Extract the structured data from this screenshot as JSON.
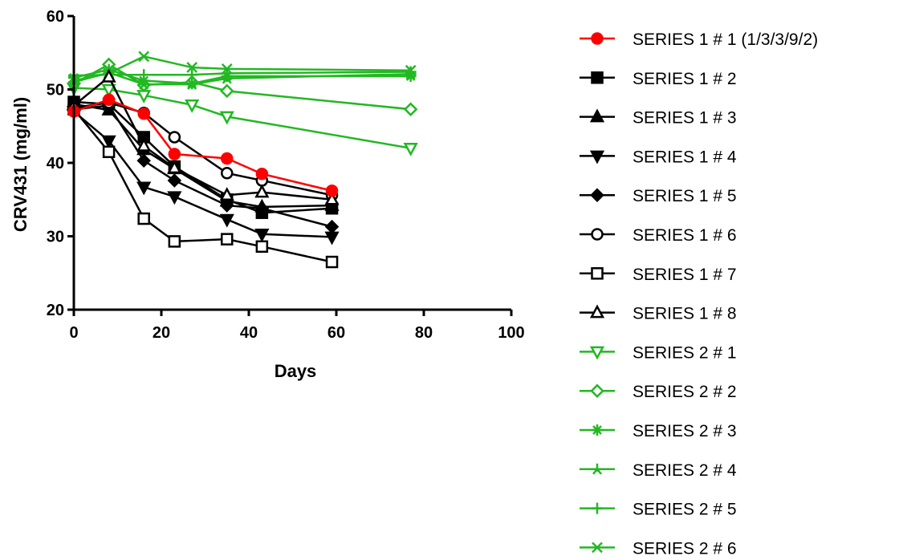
{
  "chart_data": {
    "type": "line",
    "xlabel": "Days",
    "ylabel": "CRV431 (mg/ml)",
    "xlim": [
      0,
      100
    ],
    "ylim": [
      20,
      60
    ],
    "x_ticks": [
      0,
      20,
      40,
      60,
      80,
      100
    ],
    "y_ticks": [
      20,
      30,
      40,
      50,
      60
    ],
    "grid": false,
    "legend_position": "right",
    "colors": {
      "black": "#000000",
      "red": "#ff0000",
      "green": "#22b822"
    },
    "series": [
      {
        "name": "SERIES 1 # 1 (1/3/3/9/2)",
        "color": "#ff0000",
        "marker": "circle-filled",
        "x": [
          0,
          8,
          16,
          23,
          35,
          43,
          59
        ],
        "y": [
          47.0,
          48.6,
          46.7,
          41.2,
          40.6,
          38.5,
          36.2
        ]
      },
      {
        "name": "SERIES 1 # 2",
        "color": "#000000",
        "marker": "square-filled",
        "x": [
          0,
          8,
          16,
          23,
          35,
          43,
          59
        ],
        "y": [
          48.3,
          48.0,
          43.5,
          39.5,
          35.0,
          33.2,
          33.8
        ]
      },
      {
        "name": "SERIES 1 # 3",
        "color": "#000000",
        "marker": "triangle-up-filled",
        "x": [
          0,
          8,
          16,
          23,
          35,
          43,
          59
        ],
        "y": [
          48.0,
          47.2,
          41.8,
          39.2,
          34.8,
          34.0,
          34.2
        ]
      },
      {
        "name": "SERIES 1 # 4",
        "color": "#000000",
        "marker": "triangle-down-filled",
        "x": [
          0,
          8,
          16,
          23,
          35,
          43,
          59
        ],
        "y": [
          47.0,
          43.0,
          36.7,
          35.4,
          32.3,
          30.3,
          29.9
        ]
      },
      {
        "name": "SERIES 1 # 5",
        "color": "#000000",
        "marker": "diamond-filled",
        "x": [
          0,
          8,
          16,
          23,
          35,
          43,
          59
        ],
        "y": [
          47.3,
          47.8,
          40.3,
          37.6,
          34.2,
          33.8,
          31.3
        ]
      },
      {
        "name": "SERIES 1 # 6",
        "color": "#000000",
        "marker": "circle-open",
        "x": [
          0,
          8,
          16,
          23,
          35,
          43,
          59
        ],
        "y": [
          47.5,
          48.2,
          46.8,
          43.5,
          38.6,
          37.6,
          35.6
        ]
      },
      {
        "name": "SERIES 1 # 7",
        "color": "#000000",
        "marker": "square-open",
        "x": [
          0,
          8,
          16,
          23,
          35,
          43,
          59
        ],
        "y": [
          47.3,
          41.5,
          32.4,
          29.3,
          29.6,
          28.6,
          26.5
        ]
      },
      {
        "name": "SERIES 1 # 8",
        "color": "#000000",
        "marker": "triangle-up-open",
        "x": [
          0,
          8,
          16,
          23,
          35,
          43,
          59
        ],
        "y": [
          47.8,
          51.7,
          42.3,
          39.3,
          35.6,
          36.0,
          35.0
        ]
      },
      {
        "name": "SERIES 2 # 1",
        "color": "#22b822",
        "marker": "triangle-down-open",
        "x": [
          0,
          8,
          16,
          27,
          35,
          77
        ],
        "y": [
          50.2,
          50.0,
          49.2,
          47.9,
          46.3,
          42.0
        ]
      },
      {
        "name": "SERIES 2 # 2",
        "color": "#22b822",
        "marker": "diamond-open",
        "x": [
          0,
          8,
          16,
          27,
          35,
          77
        ],
        "y": [
          50.8,
          53.4,
          50.6,
          51.0,
          49.8,
          47.3
        ]
      },
      {
        "name": "SERIES 2 # 3",
        "color": "#22b822",
        "marker": "asterisk",
        "x": [
          0,
          8,
          16,
          27,
          35,
          77
        ],
        "y": [
          51.6,
          52.7,
          51.2,
          50.8,
          51.8,
          51.8
        ]
      },
      {
        "name": "SERIES 2 # 4",
        "color": "#22b822",
        "marker": "star",
        "x": [
          0,
          8,
          16,
          27,
          35,
          77
        ],
        "y": [
          51.0,
          52.3,
          50.7,
          50.7,
          51.5,
          52.1
        ]
      },
      {
        "name": "SERIES 2 # 5",
        "color": "#22b822",
        "marker": "plus",
        "x": [
          0,
          8,
          16,
          27,
          35,
          77
        ],
        "y": [
          51.9,
          52.0,
          52.0,
          52.0,
          52.2,
          52.4
        ]
      },
      {
        "name": "SERIES 2 # 6",
        "color": "#22b822",
        "marker": "x",
        "x": [
          0,
          8,
          16,
          27,
          35,
          77
        ],
        "y": [
          51.2,
          52.2,
          54.5,
          53.0,
          52.8,
          52.6
        ]
      }
    ]
  }
}
